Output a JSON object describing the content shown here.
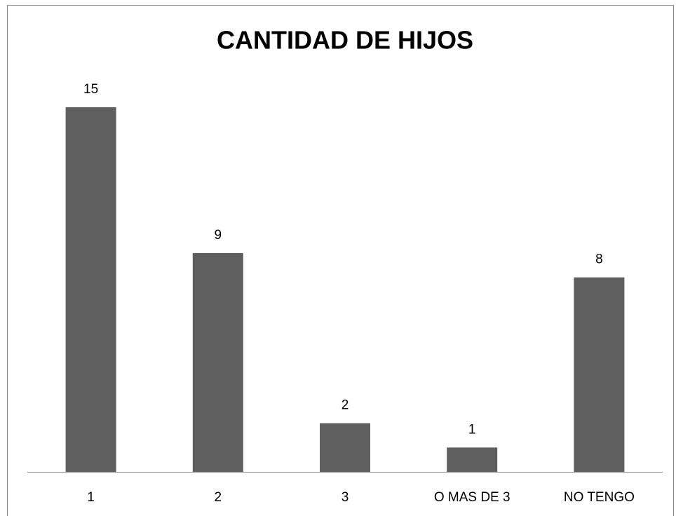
{
  "chart_data": {
    "type": "bar",
    "title": "CANTIDAD DE HIJOS",
    "categories": [
      "1",
      "2",
      "3",
      "O MAS DE 3",
      "NO TENGO"
    ],
    "values": [
      15,
      9,
      2,
      1,
      8
    ],
    "color": "#5f5f5f"
  }
}
